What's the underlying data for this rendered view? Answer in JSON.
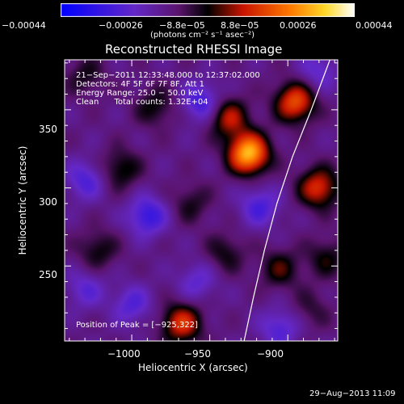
{
  "chart_data": {
    "type": "heatmap",
    "title": "Reconstructed RHESSI Image",
    "xlabel": "Heliocentric X (arcsec)",
    "ylabel": "Heliocentric Y (arcsec)",
    "xlim": [
      -1043,
      -868
    ],
    "ylim": [
      202,
      382
    ],
    "x_ticks": [
      -1000,
      -950,
      -900
    ],
    "x_tick_labels": [
      "−1000",
      "−950",
      "−900"
    ],
    "y_ticks": [
      250,
      300,
      350
    ],
    "y_tick_labels": [
      "250",
      "300",
      "350"
    ],
    "colorbar": {
      "range": [
        -0.00044,
        0.00044
      ],
      "tick_values": [
        -0.00044,
        -0.00026,
        -8.8e-05,
        8.8e-05,
        0.00026,
        0.00044
      ],
      "tick_labels": [
        "−0.00044",
        "−0.00026",
        "−8.8e−05",
        "8.8e−05",
        "0.00026",
        "0.00044"
      ],
      "unit_label": "(photons cm⁻² s⁻¹ asec⁻²)"
    },
    "annotations": [
      "21−Sep−2011 12:33:48.000 to 12:37:02.000",
      "Detectors: 4F 5F 6F 7F 8F, Att 1",
      "Energy Range: 25.0 − 50.0 keV",
      "Clean      Total counts: 1.32E+04"
    ],
    "peak_label": "Position of Peak = [−925,322]",
    "footer_date": "29−Aug−2013 11:09",
    "limb_points": [
      [
        -928,
        202
      ],
      [
        -922,
        230
      ],
      [
        -915,
        260
      ],
      [
        -907,
        290
      ],
      [
        -897,
        320
      ],
      [
        -885,
        350
      ],
      [
        -873,
        382
      ]
    ],
    "sources": [
      {
        "x": -925,
        "y": 322,
        "v": 0.00044
      },
      {
        "x": -895,
        "y": 355,
        "v": 0.0003
      },
      {
        "x": -880,
        "y": 300,
        "v": 0.00026
      },
      {
        "x": -938,
        "y": 345,
        "v": 0.00022
      },
      {
        "x": -968,
        "y": 213,
        "v": 0.00026
      },
      {
        "x": -1007,
        "y": 312,
        "v": 0.00014
      },
      {
        "x": -1022,
        "y": 260,
        "v": 0.00012
      },
      {
        "x": -940,
        "y": 258,
        "v": 0.00011
      },
      {
        "x": -962,
        "y": 290,
        "v": 0.0001
      },
      {
        "x": -985,
        "y": 352,
        "v": 0.00012
      },
      {
        "x": -905,
        "y": 248,
        "v": 0.00014
      },
      {
        "x": -875,
        "y": 255,
        "v": 0.00012
      },
      {
        "x": -885,
        "y": 222,
        "v": 8e-05
      },
      {
        "x": -1030,
        "y": 372,
        "v": 0.0001
      },
      {
        "x": -990,
        "y": 282,
        "v": -0.0002
      },
      {
        "x": -955,
        "y": 355,
        "v": -0.00018
      },
      {
        "x": -1030,
        "y": 305,
        "v": -0.00015
      },
      {
        "x": -918,
        "y": 288,
        "v": -0.00016
      },
      {
        "x": -1000,
        "y": 225,
        "v": -0.00014
      },
      {
        "x": -905,
        "y": 210,
        "v": -0.00015
      },
      {
        "x": -958,
        "y": 240,
        "v": -0.00012
      },
      {
        "x": -1030,
        "y": 235,
        "v": -0.00012
      },
      {
        "x": -880,
        "y": 375,
        "v": -0.00012
      }
    ]
  }
}
